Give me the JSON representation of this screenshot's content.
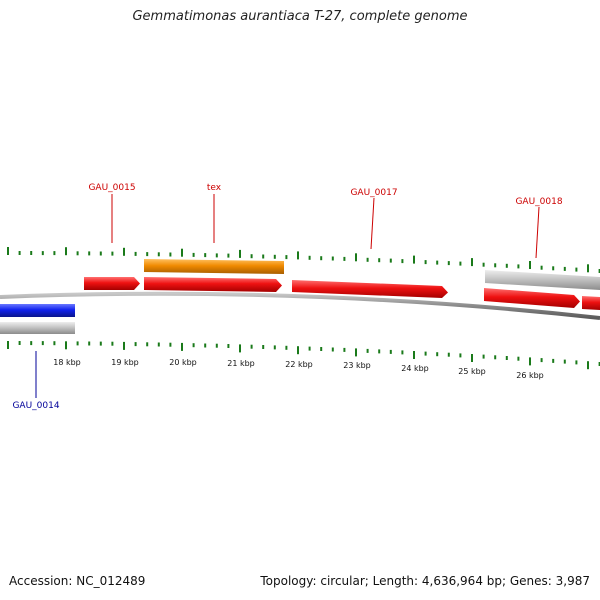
{
  "header": {
    "title": "Gemmatimonas aurantiaca T-27, complete genome"
  },
  "footer": {
    "accession": "Accession: NC_012489",
    "summary": "Topology: circular; Length: 4,636,964 bp; Genes: 3,987"
  },
  "colors": {
    "forward_gene": "#ee1111",
    "reverse_gene": "#1122ee",
    "highlight_gene": "#f08a00",
    "gray_feature": "#bcbcbc",
    "backbone": "#8a8a8a",
    "tick": "#1a7a1a",
    "forward_label": "#cc0000",
    "reverse_label": "#000099"
  },
  "scale": {
    "labels": [
      "18 kbp",
      "19 kbp",
      "20 kbp",
      "21 kbp",
      "22 kbp",
      "23 kbp",
      "24 kbp",
      "25 kbp",
      "26 kbp"
    ]
  },
  "gene_labels": [
    {
      "text": "GAU_0015",
      "strand": "forward"
    },
    {
      "text": "tex",
      "strand": "forward"
    },
    {
      "text": "GAU_0017",
      "strand": "forward"
    },
    {
      "text": "GAU_0018",
      "strand": "forward"
    },
    {
      "text": "GAU_0014",
      "strand": "reverse"
    }
  ]
}
